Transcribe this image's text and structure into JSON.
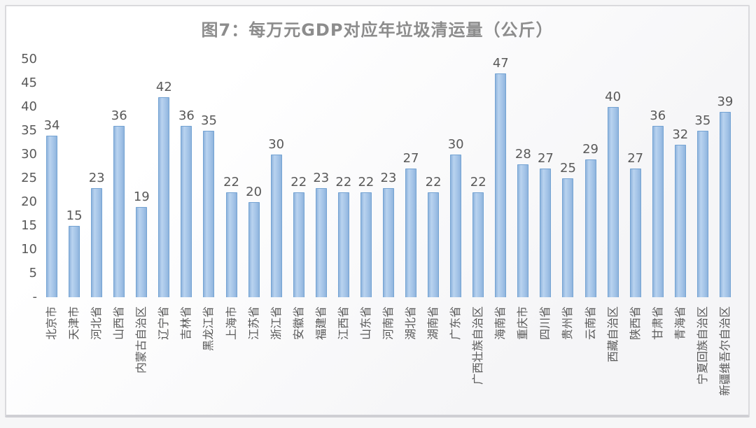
{
  "title": {
    "text": "图7：每万元GDP对应年垃圾清运量（公斤）"
  },
  "chart_data": {
    "type": "bar",
    "title": "图7：每万元GDP对应年垃圾清运量（公斤）",
    "categories": [
      "北京市",
      "天津市",
      "河北省",
      "山西省",
      "内蒙古自治区",
      "辽宁省",
      "吉林省",
      "黑龙江省",
      "上海市",
      "江苏省",
      "浙江省",
      "安徽省",
      "福建省",
      "江西省",
      "山东省",
      "河南省",
      "湖北省",
      "湖南省",
      "广东省",
      "广西壮族自治区",
      "海南省",
      "重庆市",
      "四川省",
      "贵州省",
      "云南省",
      "西藏自治区",
      "陕西省",
      "甘肃省",
      "青海省",
      "宁夏回族自治区",
      "新疆维吾尔自治区"
    ],
    "values": [
      34,
      15,
      23,
      36,
      19,
      42,
      36,
      35,
      22,
      20,
      30,
      22,
      23,
      22,
      22,
      23,
      27,
      22,
      30,
      22,
      47,
      28,
      27,
      25,
      29,
      40,
      27,
      36,
      32,
      35,
      39
    ],
    "xlabel": "",
    "ylabel": "",
    "ylim": [
      0,
      50
    ],
    "yticks": [
      "50",
      "45",
      "40",
      "35",
      "30",
      "25",
      "20",
      "15",
      "10",
      "5",
      "-"
    ],
    "ytick_values": [
      50,
      45,
      40,
      35,
      30,
      25,
      20,
      15,
      10,
      5,
      0
    ],
    "grid": false,
    "legend_position": "none",
    "data_labels": true,
    "colors": {
      "bar_fill": "#a6c5e8",
      "bar_border": "#74a3d3",
      "value_label": "#595959",
      "axis_label": "#595959",
      "title": "#8c8c8c"
    }
  }
}
